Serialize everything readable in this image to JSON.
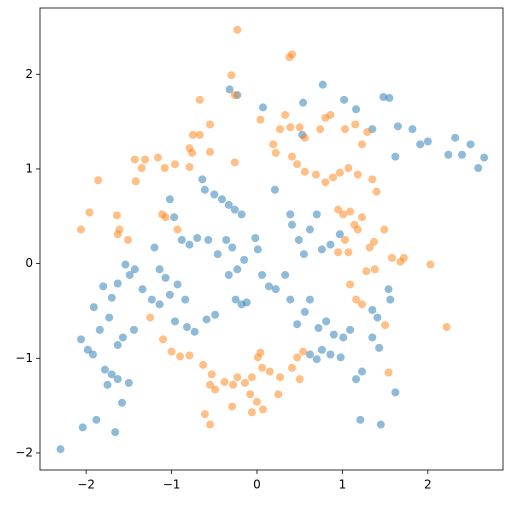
{
  "chart_data": {
    "type": "scatter",
    "xlim": [
      -2.54,
      2.88
    ],
    "ylim": [
      -2.18,
      2.7
    ],
    "xticks": [
      {
        "value": -2,
        "label": "−2"
      },
      {
        "value": -1,
        "label": "−1"
      },
      0,
      1,
      2
    ],
    "yticks": [
      {
        "value": -2,
        "label": "−2"
      },
      {
        "value": -1,
        "label": "−1"
      },
      0,
      1,
      2
    ],
    "series": [
      {
        "color": "#1f77b4",
        "x": [
          -2.3,
          -2.04,
          -1.88,
          -1.66,
          -1.58,
          -1.75,
          -1.7,
          -1.63,
          -1.5,
          -1.78,
          -2.06,
          -1.98,
          -1.92,
          -1.84,
          -1.73,
          -1.63,
          -1.57,
          -1.44,
          -1.91,
          -1.8,
          -1.7,
          -1.63,
          -1.54,
          -1.49,
          -1.43,
          -1.34,
          -1.2,
          -1.14,
          -1.07,
          -1.23,
          -1.14,
          -1.02,
          -0.93,
          -0.84,
          -0.96,
          -0.82,
          -0.73,
          -0.59,
          -0.49,
          -1.02,
          -0.97,
          -0.88,
          -0.79,
          -0.7,
          -0.57,
          -0.46,
          -0.36,
          -0.29,
          -0.23,
          -0.15,
          -0.33,
          -0.64,
          -0.61,
          -0.5,
          -0.41,
          -0.33,
          -0.26,
          -0.18,
          -0.25,
          -0.18,
          -0.12,
          -0.02,
          0.01,
          0.06,
          0.14,
          0.22,
          0.33,
          0.39,
          0.41,
          0.49,
          0.55,
          0.62,
          0.7,
          0.76,
          0.86,
          0.97,
          0.39,
          0.47,
          0.56,
          0.62,
          0.72,
          0.81,
          0.9,
          1.01,
          1.09,
          0.62,
          0.7,
          0.76,
          0.86,
          0.98,
          1.16,
          1.23,
          1.35,
          1.43,
          1.56,
          1.62,
          1.21,
          1.45,
          1.35,
          1.54,
          1.41,
          -0.23,
          -0.32,
          0.07,
          0.54,
          0.77,
          1.16,
          1.35,
          1.48,
          1.55,
          1.62,
          1.65,
          1.82,
          1.91,
          2.0,
          2.32,
          2.4,
          2.5,
          2.59,
          2.66,
          2.24,
          0.21,
          0.53,
          1.02
        ],
        "values": [
          -1.96,
          -1.73,
          -1.65,
          -1.78,
          -1.47,
          -1.28,
          -1.17,
          -1.22,
          -1.26,
          -1.12,
          -0.8,
          -0.91,
          -0.96,
          -0.7,
          -0.57,
          -0.86,
          -0.78,
          -0.7,
          -0.46,
          -0.24,
          -0.36,
          -0.21,
          -0.01,
          -0.12,
          -0.06,
          -0.27,
          0.17,
          -0.06,
          -0.15,
          -0.38,
          -0.43,
          -0.33,
          -0.22,
          -0.38,
          -0.61,
          -0.67,
          -0.72,
          -0.59,
          -0.54,
          0.68,
          0.49,
          0.25,
          0.2,
          0.27,
          0.25,
          0.1,
          0.25,
          0.17,
          -0.06,
          0.04,
          -0.12,
          0.89,
          0.78,
          0.73,
          0.68,
          0.62,
          0.57,
          0.52,
          -0.38,
          -0.43,
          -0.41,
          0.27,
          0.15,
          -0.12,
          -0.24,
          -0.27,
          -0.12,
          0.52,
          0.41,
          0.25,
          0.1,
          0.36,
          0.52,
          0.15,
          0.2,
          0.31,
          -0.38,
          -0.64,
          -0.51,
          -0.38,
          -0.68,
          -0.61,
          -0.75,
          -0.78,
          -0.7,
          -0.96,
          -1.01,
          -0.91,
          -0.96,
          -0.99,
          -1.22,
          -1.14,
          -0.78,
          -0.89,
          -0.38,
          -1.36,
          -1.65,
          -1.7,
          -0.49,
          -0.27,
          -0.57,
          1.78,
          1.84,
          1.65,
          1.7,
          1.89,
          1.63,
          1.42,
          1.76,
          1.75,
          1.13,
          1.45,
          1.42,
          1.26,
          1.29,
          1.33,
          1.15,
          1.26,
          1.01,
          1.12,
          1.15,
          0.78,
          1.36,
          1.73
        ]
      },
      {
        "color": "#ff7f0e",
        "x": [
          -0.23,
          0.38,
          0.41,
          -0.3,
          -0.26,
          0.04,
          0.33,
          0.27,
          0.39,
          0.5,
          0.56,
          0.74,
          0.8,
          0.86,
          1.03,
          1.15,
          1.29,
          1.23,
          -0.67,
          -0.55,
          -0.67,
          -0.75,
          -0.79,
          -0.76,
          -0.55,
          -0.26,
          0.19,
          0.22,
          0.41,
          0.47,
          0.56,
          0.69,
          0.8,
          0.89,
          0.97,
          1.07,
          1.18,
          1.35,
          1.4,
          -1.43,
          -1.31,
          -1.42,
          -1.35,
          -1.16,
          -1.08,
          -0.96,
          -0.79,
          -1.86,
          -1.96,
          -2.06,
          -1.64,
          -1.61,
          -1.63,
          -1.51,
          -1.11,
          -1.07,
          -0.93,
          0.95,
          1.01,
          1.09,
          1.14,
          1.18,
          1.23,
          1.03,
          0.95,
          1.07,
          1.32,
          1.37,
          1.49,
          1.58,
          1.68,
          1.72,
          2.03,
          1.09,
          1.16,
          1.23,
          1.28,
          1.38,
          -1.25,
          -1.1,
          -1.0,
          -0.9,
          -0.79,
          -0.63,
          -0.53,
          -0.55,
          -0.49,
          -0.38,
          -0.28,
          -0.23,
          -0.14,
          -0.06,
          0.04,
          0.01,
          0.06,
          0.15,
          0.27,
          0.41,
          0.47,
          0.54,
          0.5,
          -0.61,
          -0.55,
          -0.29,
          -0.08,
          0.0,
          0.07,
          -0.06,
          0.25,
          1.5,
          1.54,
          2.22
        ],
        "values": [
          2.47,
          2.18,
          2.21,
          1.99,
          1.78,
          1.52,
          1.57,
          1.42,
          1.44,
          1.44,
          1.33,
          1.42,
          1.54,
          1.57,
          1.42,
          1.47,
          1.39,
          1.26,
          1.73,
          1.47,
          1.36,
          1.36,
          1.22,
          1.17,
          1.18,
          1.07,
          1.26,
          1.17,
          1.13,
          1.05,
          0.97,
          0.94,
          0.86,
          0.91,
          0.96,
          1.01,
          0.94,
          0.89,
          0.76,
          1.1,
          1.1,
          0.87,
          1.01,
          1.12,
          1.01,
          1.05,
          1.02,
          0.88,
          0.54,
          0.36,
          0.51,
          0.36,
          0.31,
          0.25,
          0.52,
          0.49,
          0.36,
          0.57,
          0.52,
          0.55,
          0.41,
          0.36,
          0.49,
          0.25,
          0.12,
          0.12,
          0.17,
          0.23,
          0.36,
          0.06,
          0.02,
          0.06,
          -0.01,
          -0.22,
          -0.38,
          -0.43,
          -0.08,
          -0.06,
          -0.57,
          -0.8,
          -0.93,
          -0.98,
          -0.97,
          -1.07,
          -1.17,
          -1.28,
          -1.33,
          -1.25,
          -1.28,
          -1.2,
          -1.26,
          -1.2,
          -0.94,
          -0.99,
          -1.1,
          -1.14,
          -1.2,
          -1.1,
          -0.99,
          -0.93,
          -1.22,
          -1.59,
          -1.7,
          -1.51,
          -1.38,
          -1.46,
          -1.54,
          -1.57,
          -1.38,
          -0.65,
          -1.15,
          -0.67
        ]
      }
    ]
  }
}
